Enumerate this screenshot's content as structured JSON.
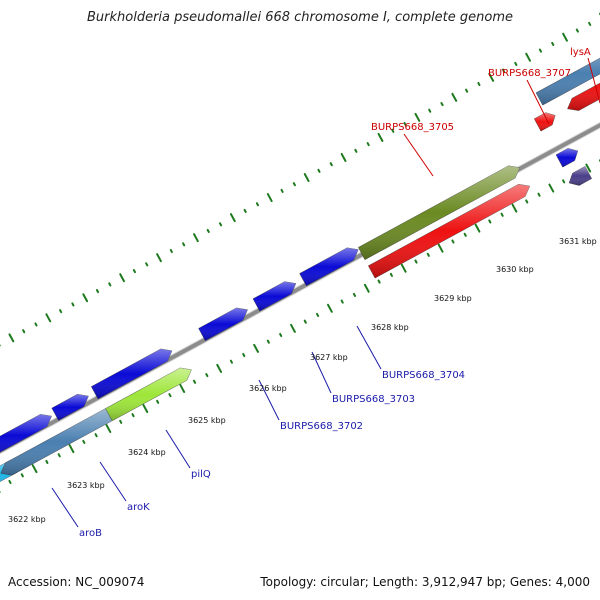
{
  "title": "Burkholderia pseudomallei 668 chromosome I, complete genome",
  "footer": {
    "accession": "Accession: NC_009074",
    "summary": "Topology: circular; Length: 3,912,947 bp; Genes: 4,000"
  },
  "colors": {
    "backbone": "#8c8c8c",
    "tick": "#1e7a1e",
    "label_blue": "#1a1aaa",
    "label_red": "#cc0000",
    "gene_blue": "#0a0ad6",
    "gene_steel": "#4a7fb0",
    "gene_red": "#ee1111",
    "gene_olive": "#6b8a22",
    "gene_lime": "#9ee63a",
    "gene_cyan": "#1fb6e8",
    "gene_purple": "#4a3f8a"
  },
  "scale_unit": "kbp",
  "tick_labels": [
    "3622 kbp",
    "3623 kbp",
    "3624 kbp",
    "3625 kbp",
    "3626 kbp",
    "3627 kbp",
    "3628 kbp",
    "3629 kbp",
    "3630 kbp",
    "3631 kbp"
  ],
  "gene_labels": [
    {
      "text": "aroB",
      "color": "blue"
    },
    {
      "text": "aroK",
      "color": "blue"
    },
    {
      "text": "pilQ",
      "color": "blue"
    },
    {
      "text": "BURPS668_3702",
      "color": "blue"
    },
    {
      "text": "BURPS668_3703",
      "color": "blue"
    },
    {
      "text": "BURPS668_3704",
      "color": "blue"
    },
    {
      "text": "BURPS668_3705",
      "color": "red"
    },
    {
      "text": "BURPS668_3707",
      "color": "red"
    },
    {
      "text": "lysA",
      "color": "red"
    }
  ]
}
